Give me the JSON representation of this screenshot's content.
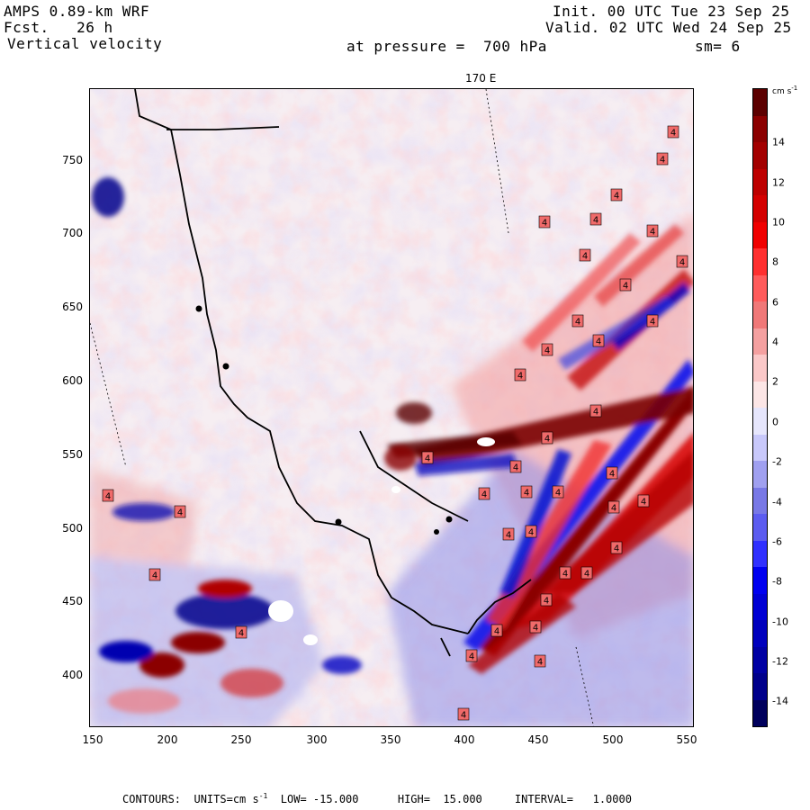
{
  "header": {
    "line1_left": "AMPS 0.89-km WRF",
    "line2_left": "Fcst.   26 h",
    "line3_left": "Vertical velocity",
    "line1_right": "Init. 00 UTC Tue 23 Sep 25",
    "line2_right": "Valid. 02 UTC Wed 24 Sep 25",
    "pressure_label": "at pressure =  700 hPa",
    "smoothing_label": "sm= 6"
  },
  "map": {
    "top_longitude_label": "170 E",
    "x_ticks": [
      "150",
      "200",
      "250",
      "300",
      "350",
      "400",
      "450",
      "500",
      "550"
    ],
    "y_ticks": [
      "750",
      "700",
      "650",
      "600",
      "550",
      "500",
      "450",
      "400"
    ],
    "contour_label": "4"
  },
  "colorbar": {
    "units": "cm s",
    "units_exp": "-1",
    "labels": [
      "14",
      "12",
      "10",
      "8",
      "6",
      "4",
      "2",
      "0",
      "-2",
      "-4",
      "-6",
      "-8",
      "-10",
      "-12",
      "-14"
    ],
    "colors": [
      "#5c0000",
      "#8b0000",
      "#a30000",
      "#bd0000",
      "#d40000",
      "#f00000",
      "#ff3030",
      "#ff5c5c",
      "#f07878",
      "#f4a0a0",
      "#fac8c8",
      "#fce6e6",
      "#e6e6fc",
      "#c8c8fa",
      "#a0a0f0",
      "#7878e6",
      "#5c5cf0",
      "#3030ff",
      "#0000f0",
      "#0000d4",
      "#0000bd",
      "#0000a3",
      "#00008b",
      "#00005c"
    ]
  },
  "footer": {
    "text": "CONTOURS:  UNITS=cm s",
    "units_exp": "-1",
    "rest": "  LOW= -15.000      HIGH=  15.000     INTERVAL=   1.0000"
  }
}
